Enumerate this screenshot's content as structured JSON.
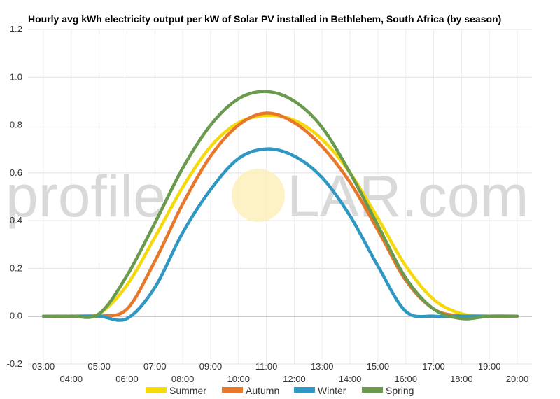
{
  "chart_data": {
    "type": "line",
    "title": "Hourly avg kWh electricity output per kW of Solar PV installed in Bethlehem, South Africa (by season)",
    "xlabel": "",
    "ylabel": "",
    "x": [
      "03:00",
      "04:00",
      "05:00",
      "06:00",
      "07:00",
      "08:00",
      "09:00",
      "10:00",
      "11:00",
      "12:00",
      "13:00",
      "14:00",
      "15:00",
      "16:00",
      "17:00",
      "18:00",
      "19:00",
      "20:00"
    ],
    "ylim": [
      -0.2,
      1.2
    ],
    "yticks": [
      "-0.2",
      "0.0",
      "0.2",
      "0.4",
      "0.6",
      "0.8",
      "1.0",
      "1.2"
    ],
    "grid": true,
    "legend_position": "bottom",
    "series": [
      {
        "name": "Summer",
        "color": "#f5d90a",
        "values": [
          0,
          0,
          0.01,
          0.13,
          0.33,
          0.54,
          0.71,
          0.81,
          0.84,
          0.82,
          0.74,
          0.6,
          0.41,
          0.21,
          0.07,
          0.01,
          0,
          0
        ]
      },
      {
        "name": "Autumn",
        "color": "#e8772a",
        "values": [
          0,
          0,
          0,
          0.03,
          0.23,
          0.47,
          0.67,
          0.8,
          0.85,
          0.81,
          0.71,
          0.56,
          0.36,
          0.15,
          0.03,
          0,
          0,
          0
        ]
      },
      {
        "name": "Winter",
        "color": "#2e97c2",
        "values": [
          0,
          0,
          0,
          -0.01,
          0.12,
          0.35,
          0.53,
          0.66,
          0.7,
          0.67,
          0.58,
          0.42,
          0.21,
          0.02,
          0,
          0,
          0,
          0
        ]
      },
      {
        "name": "Spring",
        "color": "#6a9a4e",
        "values": [
          0,
          0,
          0.01,
          0.17,
          0.39,
          0.62,
          0.8,
          0.91,
          0.94,
          0.9,
          0.79,
          0.6,
          0.38,
          0.16,
          0.03,
          -0.01,
          0,
          0
        ]
      }
    ]
  },
  "watermark": {
    "left": "profile",
    "right": "LAR.com"
  }
}
